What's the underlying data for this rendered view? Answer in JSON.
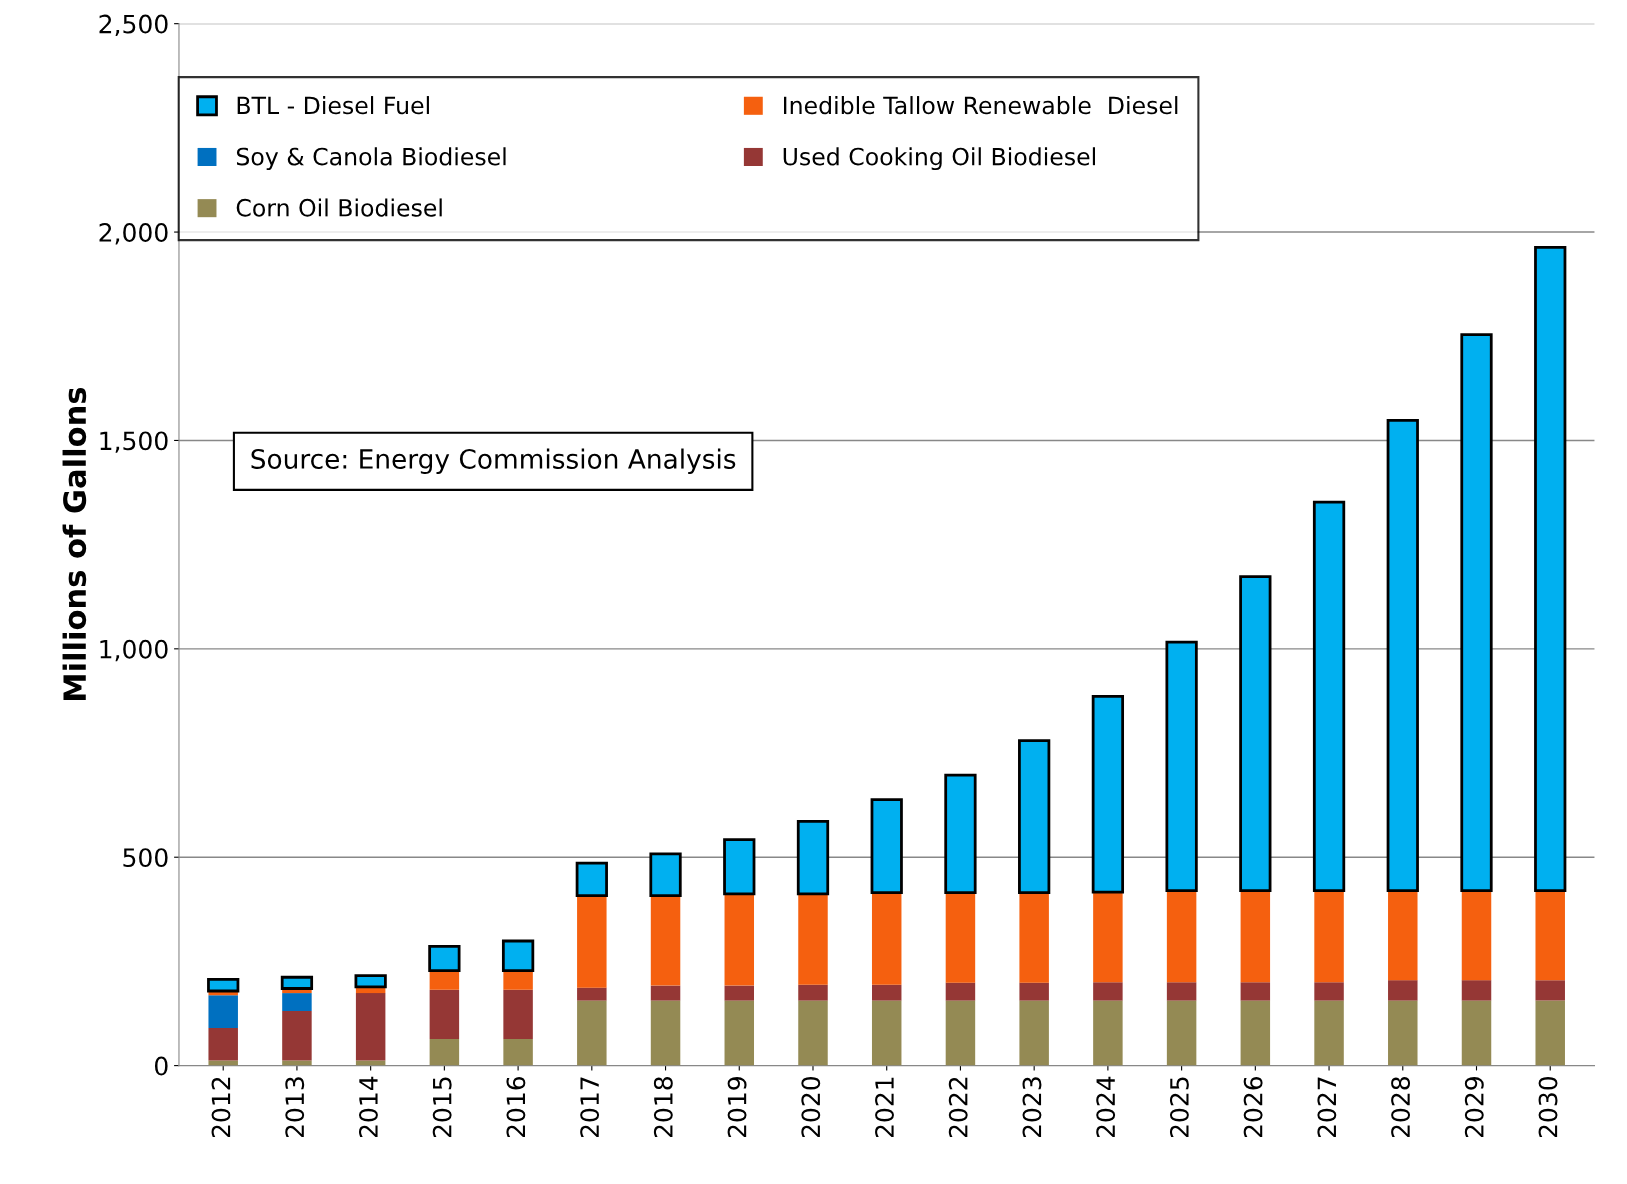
{
  "chart_data": {
    "type": "bar",
    "stacked": true,
    "ylabel": "Millions of Gallons",
    "categories": [
      "2012",
      "2013",
      "2014",
      "2015",
      "2016",
      "2017",
      "2018",
      "2019",
      "2020",
      "2021",
      "2022",
      "2023",
      "2024",
      "2025",
      "2026",
      "2027",
      "2028",
      "2029",
      "2030"
    ],
    "series": [
      {
        "name": "Corn Oil Biodiesel",
        "color": "#948a54",
        "values": [
          12,
          12,
          12,
          64,
          64,
          156,
          156,
          156,
          156,
          156,
          156,
          156,
          156,
          156,
          156,
          156,
          156,
          156,
          156
        ]
      },
      {
        "name": "Used Cooking Oil Biodiesel",
        "color": "#953735",
        "values": [
          78,
          119,
          162,
          118,
          118,
          31,
          36,
          36,
          38,
          38,
          43,
          43,
          44,
          44,
          44,
          44,
          49,
          49,
          49
        ]
      },
      {
        "name": "Soy & Canola Biodiesel",
        "color": "#0070c0",
        "values": [
          79,
          43,
          0,
          0,
          0,
          0,
          0,
          0,
          0,
          0,
          0,
          0,
          0,
          0,
          0,
          0,
          0,
          0,
          0
        ]
      },
      {
        "name": "Inedible Tallow Renewable  Diesel",
        "color": "#f5600f",
        "values": [
          10,
          11,
          15,
          46,
          46,
          221,
          216,
          220,
          218,
          221,
          216,
          216,
          216,
          220,
          220,
          220,
          215,
          215,
          215
        ]
      },
      {
        "name": "BTL - Diesel Fuel",
        "color": "#00b0f0",
        "values": [
          28,
          27,
          27,
          58,
          71,
          78,
          100,
          130,
          174,
          223,
          282,
          365,
          470,
          596,
          753,
          932,
          1128,
          1334,
          1543
        ]
      }
    ],
    "ylim": [
      0,
      2500
    ],
    "yticks": [
      0,
      500,
      {
        "value": 1000,
        "label": "1,000"
      },
      {
        "value": 1500,
        "label": "1,500"
      },
      {
        "value": 2000,
        "label": "2,000"
      },
      {
        "value": 2500,
        "label": "2,500"
      }
    ],
    "grid": "y",
    "legend": "top",
    "annotations": [
      "Source: Energy Commission Analysis"
    ]
  }
}
